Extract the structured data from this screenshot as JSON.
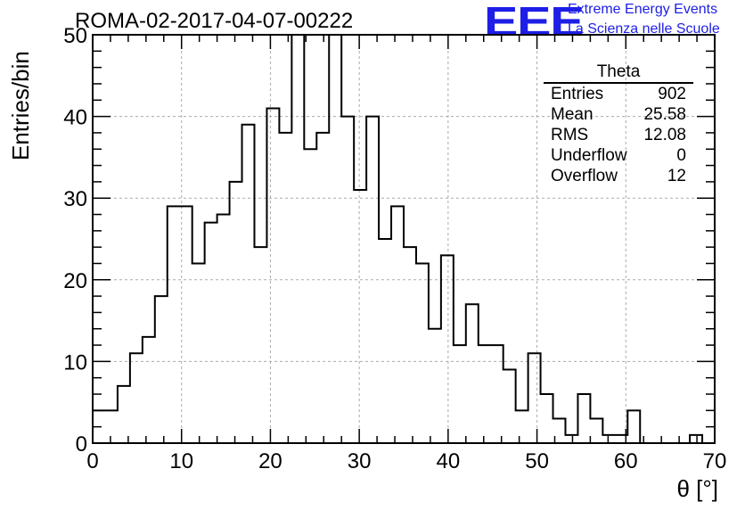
{
  "title": "ROMA-02-2017-04-07-00222",
  "logo": {
    "mark": "EEE",
    "line1": "Extreme Energy Events",
    "line2": "La Scienza nelle Scuole",
    "color": "#1e1ee6"
  },
  "stats": {
    "name": "Theta",
    "rows": [
      {
        "label": "Entries",
        "value": "902"
      },
      {
        "label": "Mean",
        "value": "25.58"
      },
      {
        "label": "RMS",
        "value": "12.08"
      },
      {
        "label": "Underflow",
        "value": "0"
      },
      {
        "label": "Overflow",
        "value": "12"
      }
    ]
  },
  "chart_data": {
    "type": "histogram",
    "title": "ROMA-02-2017-04-07-00222",
    "xlabel": "θ [°]",
    "ylabel": "Entries/bin",
    "xlim": [
      0,
      70
    ],
    "ylim": [
      0,
      50
    ],
    "bin_width": 1.4,
    "bin_edges_start": 0,
    "values": [
      4,
      4,
      7,
      11,
      13,
      18,
      29,
      29,
      22,
      27,
      28,
      32,
      39,
      24,
      41,
      38,
      50,
      36,
      38,
      50,
      40,
      31,
      40,
      25,
      29,
      24,
      22,
      14,
      23,
      12,
      17,
      12,
      12,
      9,
      4,
      11,
      6,
      3,
      1,
      6,
      3,
      1,
      1,
      4,
      0,
      0,
      0,
      0,
      1,
      0
    ],
    "xticks": [
      0,
      10,
      20,
      30,
      40,
      50,
      60,
      70
    ],
    "yticks": [
      0,
      10,
      20,
      30,
      40,
      50
    ],
    "grid": true,
    "line_color": "#000000"
  }
}
